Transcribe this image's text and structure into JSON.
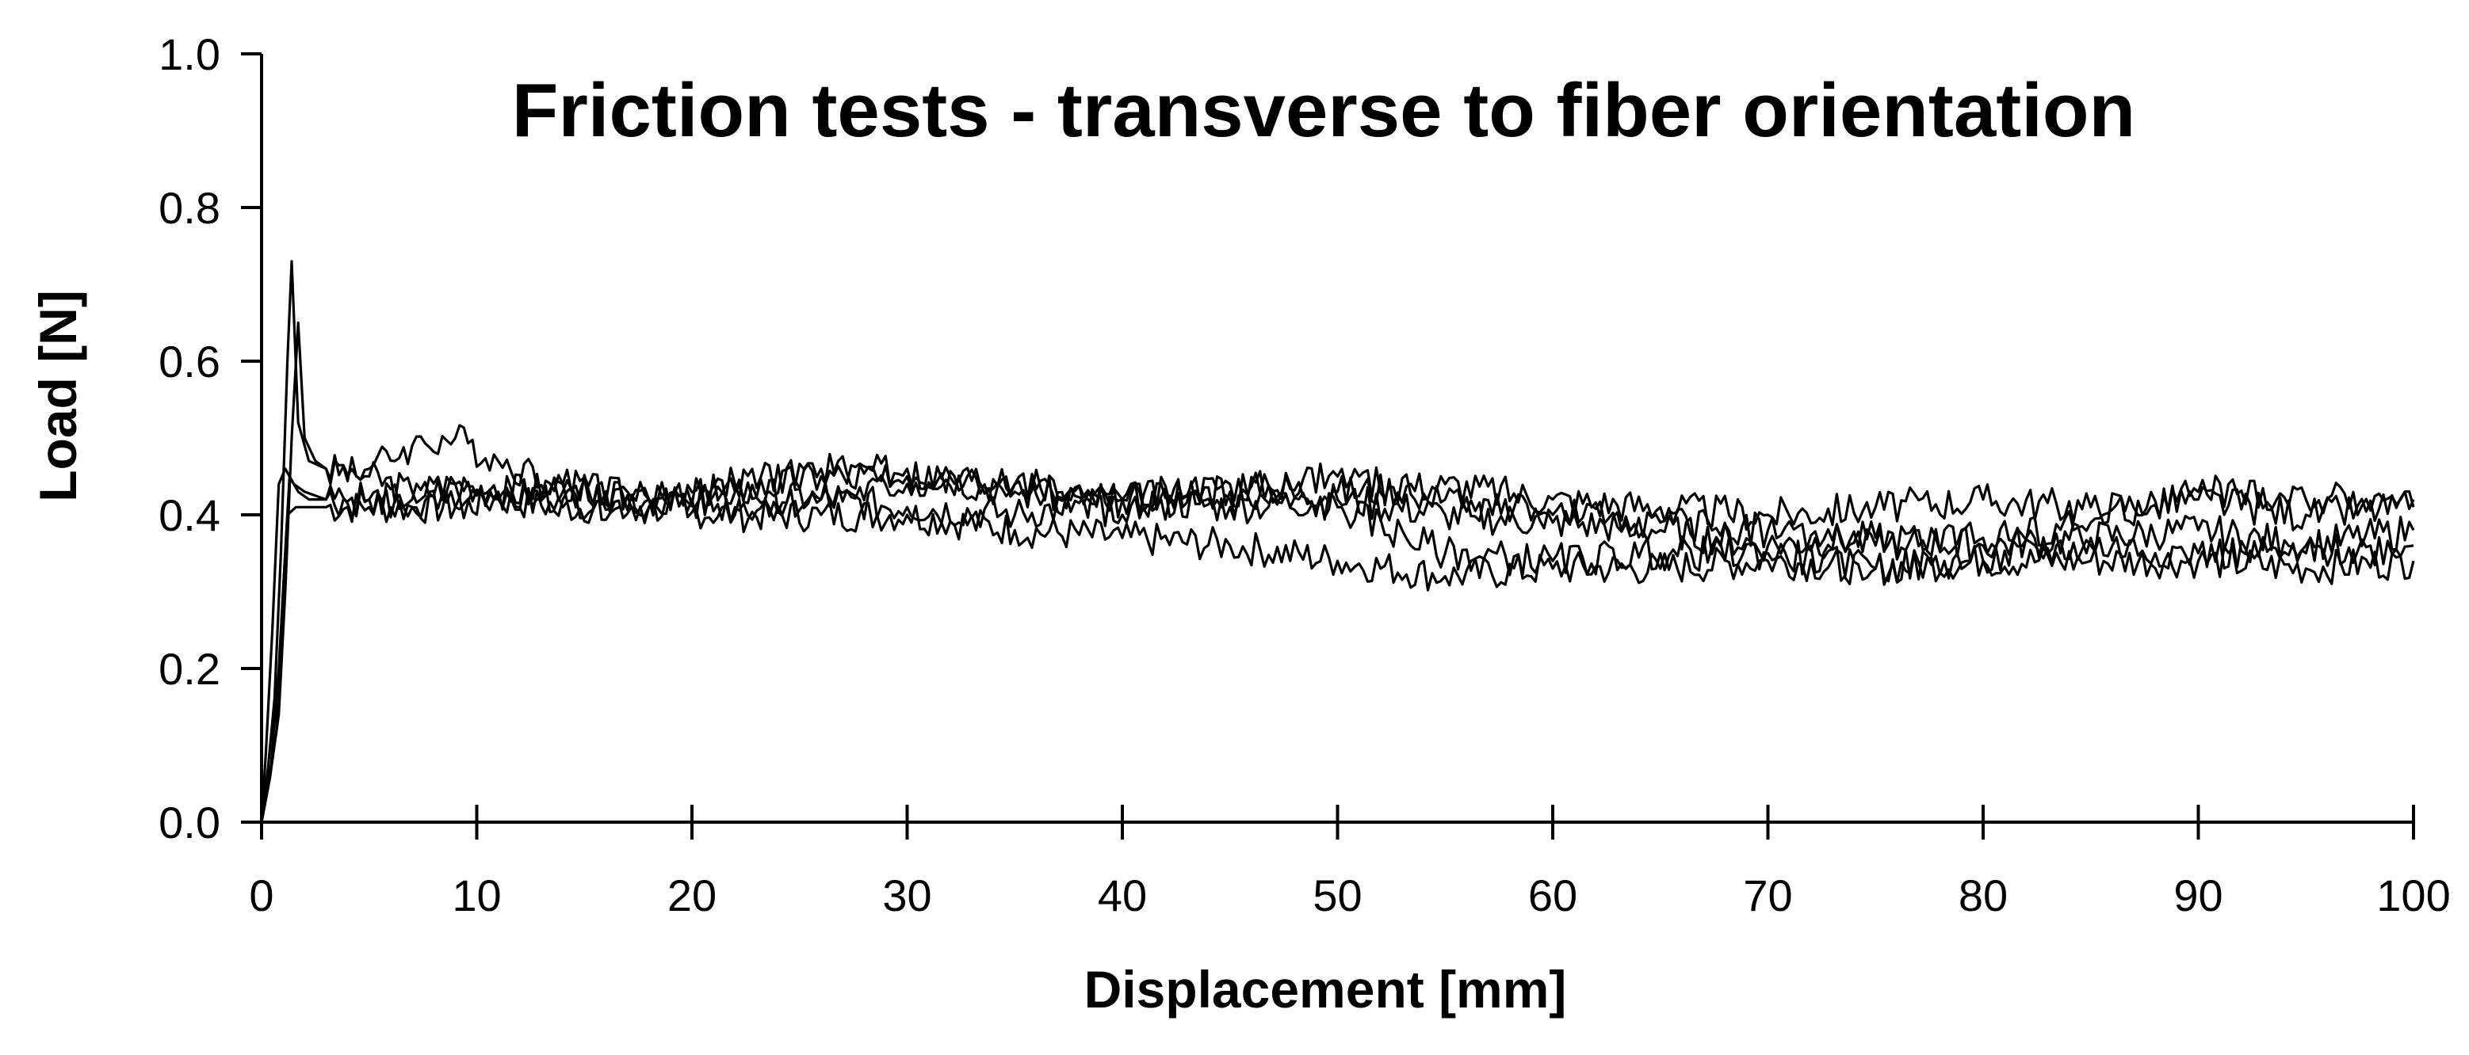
{
  "chart_data": {
    "type": "line",
    "title": "Friction tests - transverse to fiber orientation",
    "xlabel": "Displacement [mm]",
    "ylabel": "Load [N]",
    "xlim": [
      0,
      100
    ],
    "ylim": [
      0,
      1.0
    ],
    "x_ticks": [
      0,
      10,
      20,
      30,
      40,
      50,
      60,
      70,
      80,
      90,
      100
    ],
    "x_tick_labels": [
      "0",
      "10",
      "20",
      "30",
      "40",
      "50",
      "60",
      "70",
      "80",
      "90",
      "100"
    ],
    "y_ticks": [
      0.0,
      0.2,
      0.4,
      0.6,
      0.8,
      1.0
    ],
    "y_tick_labels": [
      "0.0",
      "0.2",
      "0.4",
      "0.6",
      "0.8",
      "1.0"
    ],
    "grid": false,
    "legend": "none",
    "line_color": "#000000",
    "series": [
      {
        "x": [
          0,
          0.3,
          0.6,
          0.9,
          1.2,
          1.4,
          1.7,
          2.2,
          3,
          5,
          7,
          9,
          11,
          14,
          18,
          22,
          26,
          30,
          35,
          40,
          45,
          50,
          55,
          60,
          65,
          70,
          75,
          80,
          85,
          90,
          95,
          100
        ],
        "y": [
          0.0,
          0.07,
          0.16,
          0.35,
          0.6,
          0.73,
          0.52,
          0.47,
          0.46,
          0.45,
          0.43,
          0.44,
          0.43,
          0.44,
          0.42,
          0.43,
          0.45,
          0.46,
          0.43,
          0.42,
          0.44,
          0.43,
          0.44,
          0.42,
          0.41,
          0.4,
          0.41,
          0.42,
          0.41,
          0.42,
          0.4,
          0.41
        ]
      },
      {
        "x": [
          0,
          0.4,
          0.8,
          1.1,
          1.4,
          1.7,
          2.0,
          2.5,
          3,
          5,
          7,
          9,
          11,
          14,
          18,
          22,
          26,
          30,
          35,
          40,
          45,
          50,
          55,
          60,
          65,
          70,
          75,
          80,
          85,
          90,
          95,
          100
        ],
        "y": [
          0.0,
          0.06,
          0.14,
          0.3,
          0.5,
          0.65,
          0.5,
          0.47,
          0.46,
          0.46,
          0.49,
          0.5,
          0.47,
          0.44,
          0.42,
          0.44,
          0.46,
          0.45,
          0.44,
          0.42,
          0.43,
          0.45,
          0.42,
          0.4,
          0.39,
          0.38,
          0.36,
          0.37,
          0.39,
          0.43,
          0.42,
          0.42
        ]
      },
      {
        "x": [
          0,
          0.2,
          0.5,
          0.8,
          1.1,
          1.5,
          2,
          3,
          5,
          7,
          9,
          11,
          14,
          18,
          22,
          26,
          30,
          35,
          40,
          45,
          50,
          55,
          60,
          65,
          70,
          75,
          80,
          85,
          90,
          95,
          100
        ],
        "y": [
          0.0,
          0.09,
          0.25,
          0.44,
          0.46,
          0.44,
          0.43,
          0.42,
          0.42,
          0.41,
          0.41,
          0.42,
          0.43,
          0.42,
          0.41,
          0.42,
          0.44,
          0.44,
          0.4,
          0.42,
          0.41,
          0.35,
          0.34,
          0.35,
          0.35,
          0.33,
          0.34,
          0.36,
          0.35,
          0.35,
          0.36
        ]
      },
      {
        "x": [
          0,
          0.3,
          0.7,
          1.0,
          1.3,
          1.7,
          2.2,
          3,
          5,
          7,
          9,
          11,
          14,
          18,
          22,
          26,
          30,
          35,
          40,
          45,
          50,
          55,
          60,
          65,
          70,
          75,
          80,
          85,
          90,
          95,
          100
        ],
        "y": [
          0.0,
          0.05,
          0.12,
          0.3,
          0.45,
          0.43,
          0.42,
          0.42,
          0.42,
          0.42,
          0.44,
          0.43,
          0.42,
          0.41,
          0.43,
          0.42,
          0.41,
          0.4,
          0.42,
          0.41,
          0.42,
          0.4,
          0.39,
          0.38,
          0.36,
          0.37,
          0.36,
          0.37,
          0.38,
          0.36,
          0.38
        ]
      },
      {
        "x": [
          0,
          0.4,
          0.8,
          1.2,
          1.6,
          2.1,
          3,
          5,
          7,
          9,
          11,
          14,
          18,
          22,
          26,
          30,
          35,
          40,
          45,
          50,
          55,
          60,
          65,
          70,
          75,
          80,
          85,
          90,
          95,
          100
        ],
        "y": [
          0.0,
          0.06,
          0.2,
          0.4,
          0.41,
          0.41,
          0.41,
          0.41,
          0.41,
          0.41,
          0.42,
          0.41,
          0.41,
          0.4,
          0.4,
          0.4,
          0.38,
          0.37,
          0.36,
          0.34,
          0.32,
          0.33,
          0.33,
          0.34,
          0.33,
          0.34,
          0.34,
          0.34,
          0.33,
          0.34
        ]
      }
    ]
  }
}
